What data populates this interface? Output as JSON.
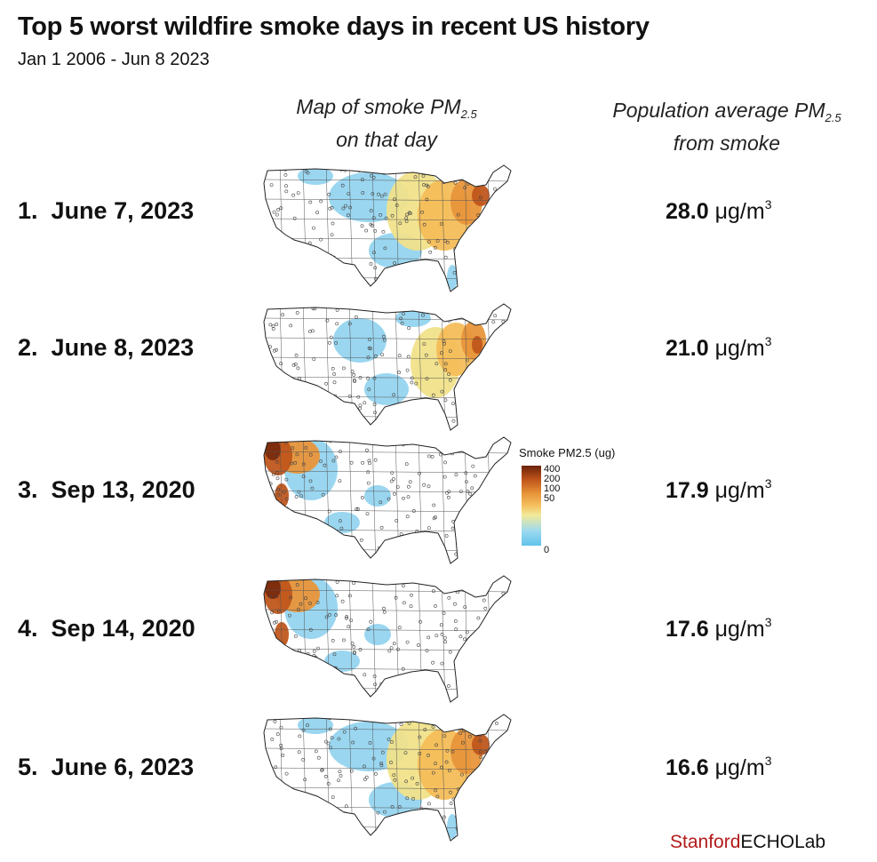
{
  "title": "Top 5 worst wildfire smoke days in recent US history",
  "subtitle": "Jan 1 2006 - Jun 8 2023",
  "columns": {
    "map_line1": "Map of smoke PM",
    "map_sub": "2.5",
    "map_line2": "on that day",
    "pop_line1": "Population average PM",
    "pop_sub": "2.5",
    "pop_line2": "from smoke"
  },
  "rows": [
    {
      "rank": "1.",
      "date": "June 7, 2023",
      "value": "28.0",
      "unit": "μg/m",
      "unit_sup": "3",
      "pattern": "east"
    },
    {
      "rank": "2.",
      "date": "June 8, 2023",
      "value": "21.0",
      "unit": "μg/m",
      "unit_sup": "3",
      "pattern": "east2"
    },
    {
      "rank": "3.",
      "date": "Sep 13, 2020",
      "value": "17.9",
      "unit": "μg/m",
      "unit_sup": "3",
      "pattern": "west"
    },
    {
      "rank": "4.",
      "date": "Sep 14, 2020",
      "value": "17.6",
      "unit": "μg/m",
      "unit_sup": "3",
      "pattern": "west"
    },
    {
      "rank": "5.",
      "date": "June 6, 2023",
      "value": "16.6",
      "unit": "μg/m",
      "unit_sup": "3",
      "pattern": "east"
    }
  ],
  "legend": {
    "title": "Smoke PM2.5 (ug)",
    "ticks": [
      "400",
      "200",
      "100",
      "50",
      "0"
    ],
    "colors": [
      "#6b2108",
      "#c0561c",
      "#e8953a",
      "#f4c060",
      "#f2ea9a",
      "#9bd9f0",
      "#5fc3ea"
    ]
  },
  "brand": {
    "part1": "Stanford",
    "part2": "ECHOLab",
    "color1": "#b31b1b"
  },
  "chart_data": {
    "type": "bar",
    "title": "Top 5 worst wildfire smoke days in recent US history",
    "subtitle": "Jan 1 2006 - Jun 8 2023",
    "categories": [
      "June 7, 2023",
      "June 8, 2023",
      "Sep 13, 2020",
      "Sep 14, 2020",
      "June 6, 2023"
    ],
    "values": [
      28.0,
      21.0,
      17.9,
      17.6,
      16.6
    ],
    "xlabel": "",
    "ylabel": "Population average PM2.5 from smoke",
    "units": "μg/m3"
  }
}
